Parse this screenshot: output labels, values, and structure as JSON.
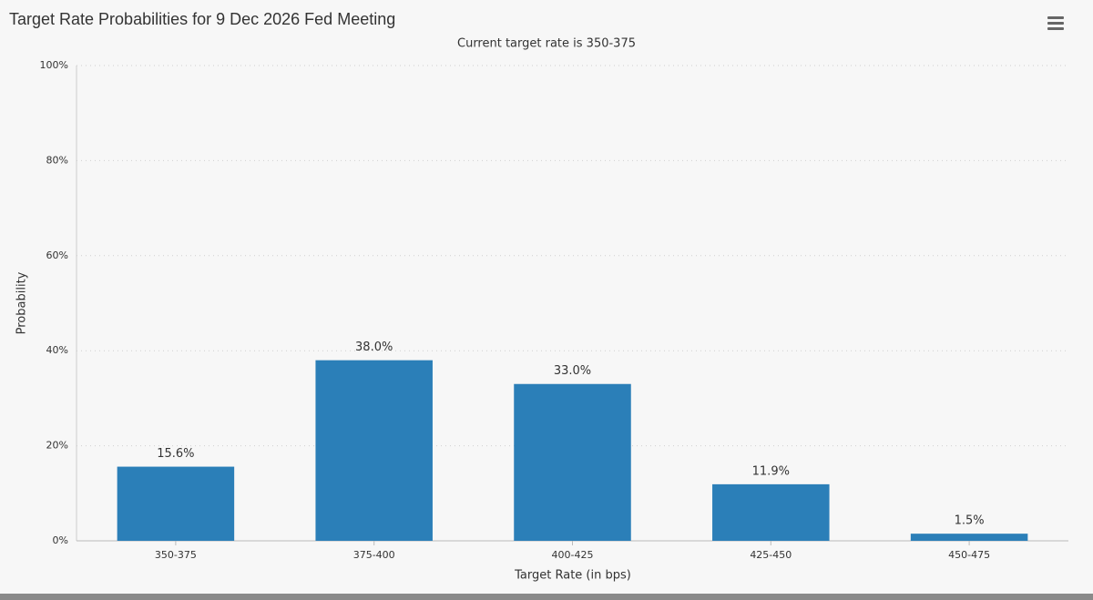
{
  "chart_data": {
    "type": "bar",
    "title": "Target Rate Probabilities for 9 Dec 2026 Fed Meeting",
    "subtitle": "Current target rate is 350-375",
    "x_label": "Target Rate (in bps)",
    "y_label": "Probability",
    "categories": [
      "350-375",
      "375-400",
      "400-425",
      "425-450",
      "450-475"
    ],
    "values": [
      15.6,
      38.0,
      33.0,
      11.9,
      1.5
    ],
    "value_labels": [
      "15.6%",
      "38.0%",
      "33.0%",
      "11.9%",
      "1.5%"
    ],
    "color": "#2b7fb8",
    "ylim": [
      0,
      100
    ],
    "yticks": [
      {
        "value": 0,
        "label": "0%"
      },
      {
        "value": 20,
        "label": "20%"
      },
      {
        "value": 40,
        "label": "40%"
      },
      {
        "value": 60,
        "label": "60%"
      },
      {
        "value": 80,
        "label": "80%"
      },
      {
        "value": 100,
        "label": "100%"
      }
    ],
    "grid": true
  }
}
